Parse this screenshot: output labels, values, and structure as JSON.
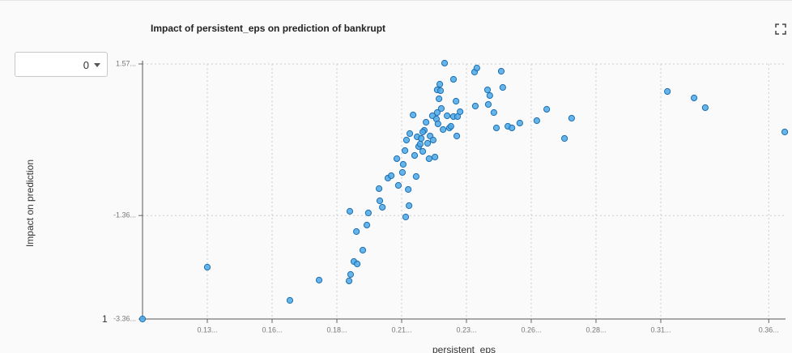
{
  "controls": {
    "dropdown_value": "0",
    "row_label": "1"
  },
  "chart_data": {
    "type": "scatter",
    "title": "Impact of persistent_eps on prediction of bankrupt",
    "x_label": "persistent_eps",
    "y_label": "Impact on prediction",
    "color": "#4aa8e8",
    "grid": true,
    "xlim": [
      0.1095,
      0.3626
    ],
    "ylim": [
      -3.36,
      1.57
    ],
    "xticks": [
      {
        "value": 0.135,
        "label": "0.13..."
      },
      {
        "value": 0.1605,
        "label": "0.16..."
      },
      {
        "value": 0.186,
        "label": "0.18..."
      },
      {
        "value": 0.2115,
        "label": "0.21..."
      },
      {
        "value": 0.237,
        "label": "0.23..."
      },
      {
        "value": 0.2625,
        "label": "0.26..."
      },
      {
        "value": 0.288,
        "label": "0.28..."
      },
      {
        "value": 0.3135,
        "label": "0.31..."
      },
      {
        "value": 0.356,
        "label": "0.36..."
      }
    ],
    "yticks": [
      {
        "value": 1.57,
        "label": "1.57..."
      },
      {
        "value": -1.36,
        "label": "-1.36..."
      },
      {
        "value": -3.36,
        "label": "-3.36..."
      }
    ],
    "x": [
      0.1095,
      0.135,
      0.1675,
      0.179,
      0.1911,
      0.1908,
      0.1914,
      0.1927,
      0.194,
      0.1937,
      0.1962,
      0.1978,
      0.1984,
      0.2026,
      0.2029,
      0.2039,
      0.2061,
      0.2074,
      0.2096,
      0.2102,
      0.2118,
      0.2121,
      0.2128,
      0.2134,
      0.2141,
      0.2144,
      0.2131,
      0.2147,
      0.2172,
      0.216,
      0.2166,
      0.2176,
      0.2182,
      0.2188,
      0.2192,
      0.2198,
      0.2204,
      0.2211,
      0.2198,
      0.2217,
      0.2223,
      0.2227,
      0.2239,
      0.2236,
      0.2246,
      0.2252,
      0.2258,
      0.2255,
      0.2262,
      0.2265,
      0.2271,
      0.2278,
      0.2284,
      0.2294,
      0.2303,
      0.2309,
      0.2319,
      0.2319,
      0.2329,
      0.2332,
      0.2335,
      0.2345,
      0.2255,
      0.2268,
      0.2402,
      0.2411,
      0.2405,
      0.2453,
      0.2462,
      0.2456,
      0.2478,
      0.2488,
      0.2507,
      0.2513,
      0.2533,
      0.2549,
      0.258,
      0.2647,
      0.2686,
      0.2756,
      0.2784,
      0.3161,
      0.3266,
      0.331,
      0.3623
    ],
    "values": [
      -3.36,
      -2.358,
      -3.0,
      -2.609,
      -1.278,
      -2.624,
      -2.499,
      -2.249,
      -2.296,
      -1.67,
      -2.03,
      -1.544,
      -1.31,
      -0.84,
      -1.075,
      -1.2,
      -0.637,
      -0.59,
      -0.261,
      -0.778,
      -0.527,
      -0.371,
      -0.105,
      0.099,
      -0.856,
      -1.169,
      -1.388,
      0.224,
      -0.605,
      0.584,
      -0.198,
      0.161,
      -0.026,
      0.021,
      0.13,
      -0.12,
      0.287,
      0.443,
      0.255,
      0.036,
      -0.261,
      0.177,
      0.099,
      0.568,
      -0.23,
      0.506,
      0.412,
      0.631,
      0.897,
      1.179,
      0.709,
      0.302,
      1.586,
      0.568,
      0.334,
      0.365,
      1.273,
      0.553,
      0.85,
      0.177,
      0.553,
      0.647,
      1.069,
      1.054,
      1.413,
      1.492,
      0.756,
      1.069,
      0.96,
      0.787,
      0.631,
      0.334,
      1.429,
      1.116,
      0.365,
      0.334,
      0.428,
      0.474,
      0.694,
      0.13,
      0.521,
      1.038,
      0.913,
      0.725,
      0.255
    ]
  }
}
